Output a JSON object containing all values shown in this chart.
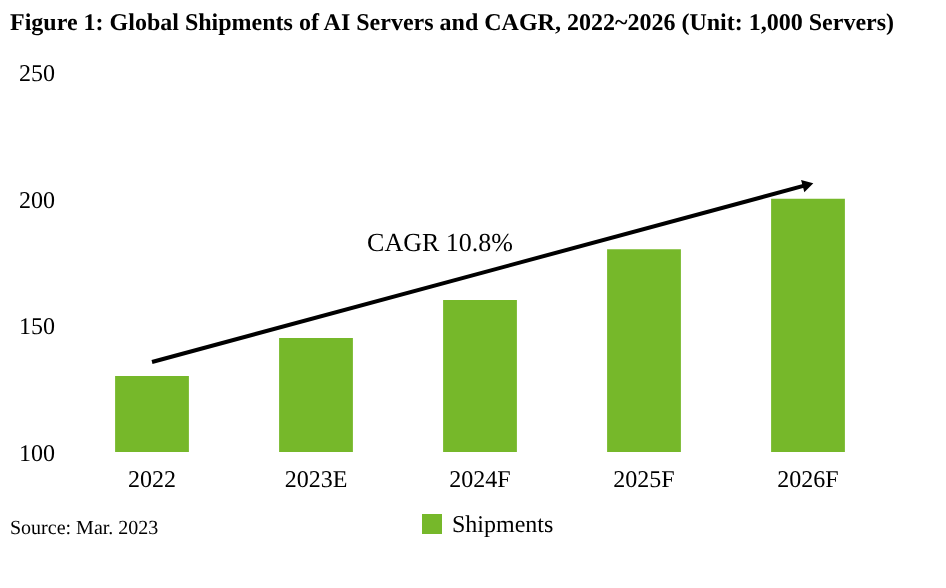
{
  "chart_data": {
    "type": "bar",
    "title": "Figure 1: Global Shipments of AI Servers and CAGR, 2022~2026 (Unit: 1,000 Servers)",
    "categories": [
      "2022",
      "2023E",
      "2024F",
      "2025F",
      "2026F"
    ],
    "series": [
      {
        "name": "Shipments",
        "color": "#76b82a",
        "values": [
          130,
          145,
          160,
          180,
          200
        ]
      }
    ],
    "ylim": [
      100,
      250
    ],
    "yticks": [
      100,
      150,
      200,
      250
    ],
    "grid": false,
    "legend": "bottom",
    "annotations": [
      "CAGR 10.8%",
      "Source: Mar. 2023"
    ]
  }
}
